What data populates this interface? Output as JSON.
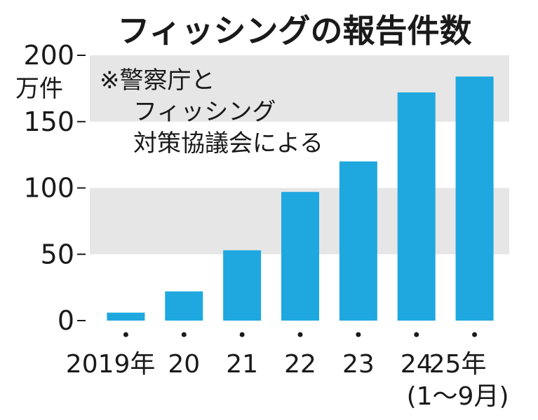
{
  "chart_data": {
    "type": "bar",
    "title": "フィッシングの報告件数",
    "ylabel_unit": "万件",
    "note_lines": [
      "※警察庁と",
      "フィッシング",
      "対策協議会による"
    ],
    "categories": [
      "2019年",
      "20",
      "21",
      "22",
      "23",
      "24",
      "25年"
    ],
    "category_sublabels": [
      "",
      "",
      "",
      "",
      "",
      "",
      "(1〜9月)"
    ],
    "values": [
      6,
      22,
      53,
      97,
      120,
      172,
      184
    ],
    "ylim": [
      0,
      200
    ],
    "yticks": [
      0,
      50,
      100,
      150,
      200
    ],
    "ytick_labels": [
      "0",
      "50",
      "100",
      "150",
      "200"
    ],
    "xlabel": "",
    "grid": "alternating horizontal bands",
    "legend": "none",
    "colors": {
      "bar": "#1ea8df",
      "band": "#e6e6e6",
      "text": "#1a1a1a"
    }
  }
}
